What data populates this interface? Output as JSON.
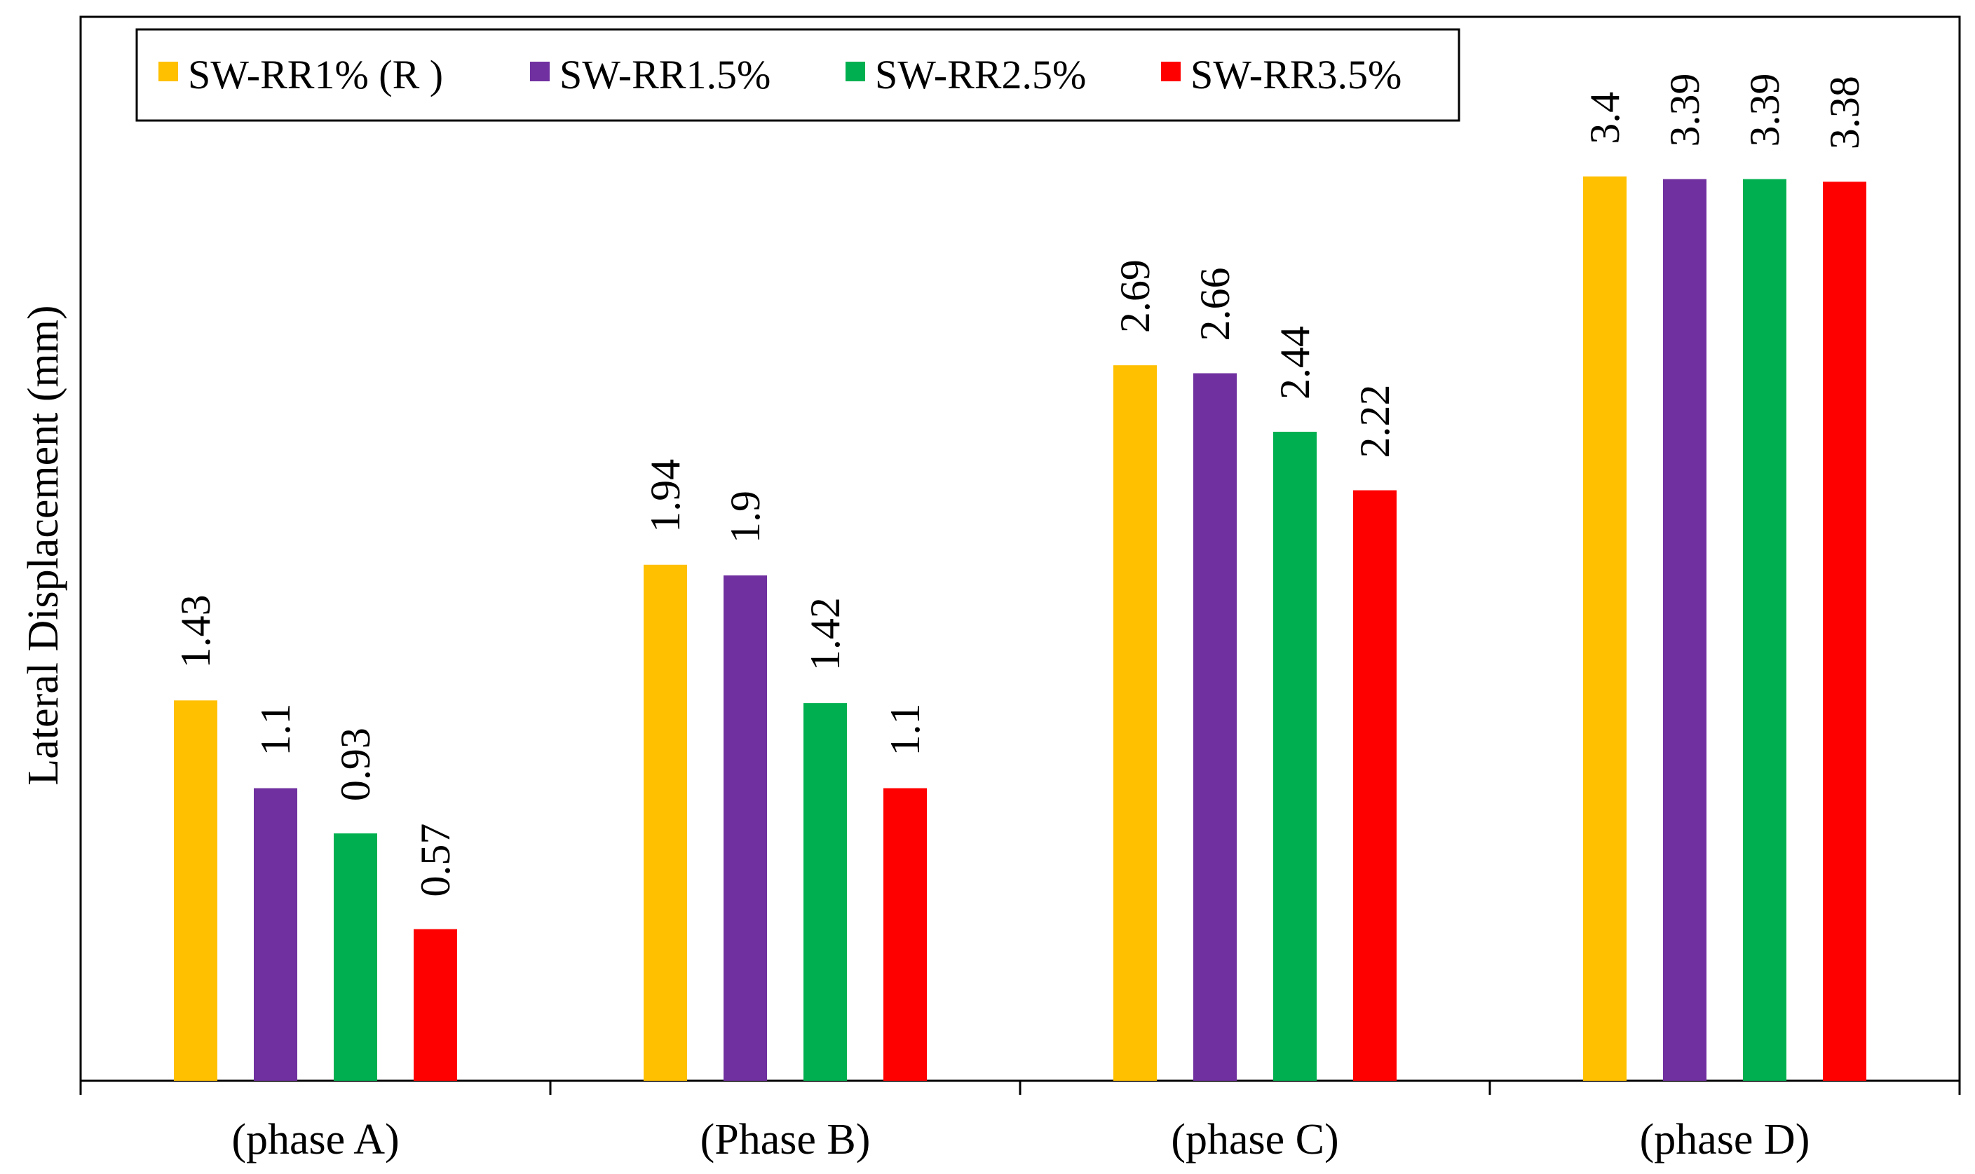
{
  "chart_data": {
    "type": "bar",
    "title": "",
    "xlabel": "",
    "ylabel": "Lateral Displacement (mm)",
    "ylim": [
      0,
      4
    ],
    "grid": false,
    "legend_position": "top-left",
    "categories": [
      "(phase A)",
      "(Phase B)",
      "(phase C)",
      "(phase D)"
    ],
    "series": [
      {
        "name": "SW-RR1% (R )",
        "color": "#FFC000",
        "values": [
          1.43,
          1.94,
          2.69,
          3.4
        ],
        "labels": [
          "1.43",
          "1.94",
          "2.69",
          "3.4"
        ]
      },
      {
        "name": "SW-RR1.5%",
        "color": "#7030A0",
        "values": [
          1.1,
          1.9,
          2.66,
          3.39
        ],
        "labels": [
          "1.1",
          "1.9",
          "2.66",
          "3.39"
        ]
      },
      {
        "name": "SW-RR2.5%",
        "color": "#00B050",
        "values": [
          0.93,
          1.42,
          2.44,
          3.39
        ],
        "labels": [
          "0.93",
          "1.42",
          "2.44",
          "3.39"
        ]
      },
      {
        "name": "SW-RR3.5%",
        "color": "#FF0000",
        "values": [
          0.57,
          1.1,
          2.22,
          3.38
        ],
        "labels": [
          "0.57",
          "1.1",
          "2.22",
          "3.38"
        ]
      }
    ]
  }
}
